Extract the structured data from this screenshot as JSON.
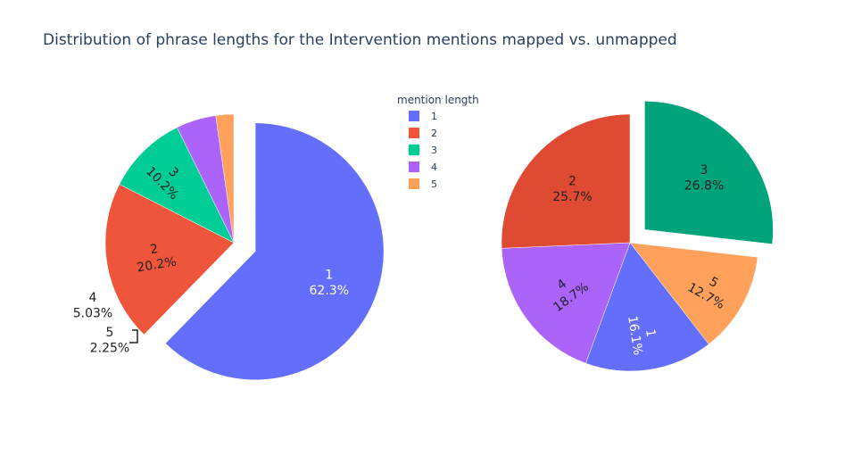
{
  "title": "Distribution of phrase lengths for the Intervention mentions mapped vs. unmapped",
  "legend": {
    "title": "mention length",
    "placement": "top-center",
    "items": [
      {
        "label": "1",
        "color": "#636efa"
      },
      {
        "label": "2",
        "color": "#EF553B"
      },
      {
        "label": "3",
        "color": "#00cc96"
      },
      {
        "label": "4",
        "color": "#ab63fa"
      },
      {
        "label": "5",
        "color": "#FFA15A"
      }
    ]
  },
  "chart_data": [
    {
      "type": "pie",
      "slices": [
        {
          "label": "1",
          "percent_label": "62.3%",
          "value": 62.3,
          "color": "#636efa",
          "pulled": true,
          "text_color": "#ffffff"
        },
        {
          "label": "2",
          "percent_label": "20.2%",
          "value": 20.2,
          "color": "#EF553B",
          "pulled": false,
          "text_color": "#222222"
        },
        {
          "label": "3",
          "percent_label": "10.2%",
          "value": 10.2,
          "color": "#00cc96",
          "pulled": false,
          "text_color": "#222222"
        },
        {
          "label": "4",
          "percent_label": "5.03%",
          "value": 5.03,
          "color": "#ab63fa",
          "pulled": false,
          "text_color": "#222222"
        },
        {
          "label": "5",
          "percent_label": "2.25%",
          "value": 2.25,
          "color": "#FFA15A",
          "pulled": false,
          "text_color": "#222222"
        }
      ]
    },
    {
      "type": "pie",
      "slices": [
        {
          "label": "3",
          "percent_label": "26.8%",
          "value": 26.8,
          "color": "#00a37a",
          "pulled": true,
          "text_color": "#222222"
        },
        {
          "label": "5",
          "percent_label": "12.7%",
          "value": 12.7,
          "color": "#FFA15A",
          "pulled": false,
          "text_color": "#222222"
        },
        {
          "label": "1",
          "percent_label": "16.1%",
          "value": 16.1,
          "color": "#636efa",
          "pulled": false,
          "text_color": "#ffffff"
        },
        {
          "label": "4",
          "percent_label": "18.7%",
          "value": 18.7,
          "color": "#ab63fa",
          "pulled": false,
          "text_color": "#222222"
        },
        {
          "label": "2",
          "percent_label": "25.7%",
          "value": 25.7,
          "color": "#df4a32",
          "pulled": false,
          "text_color": "#222222"
        }
      ]
    }
  ]
}
